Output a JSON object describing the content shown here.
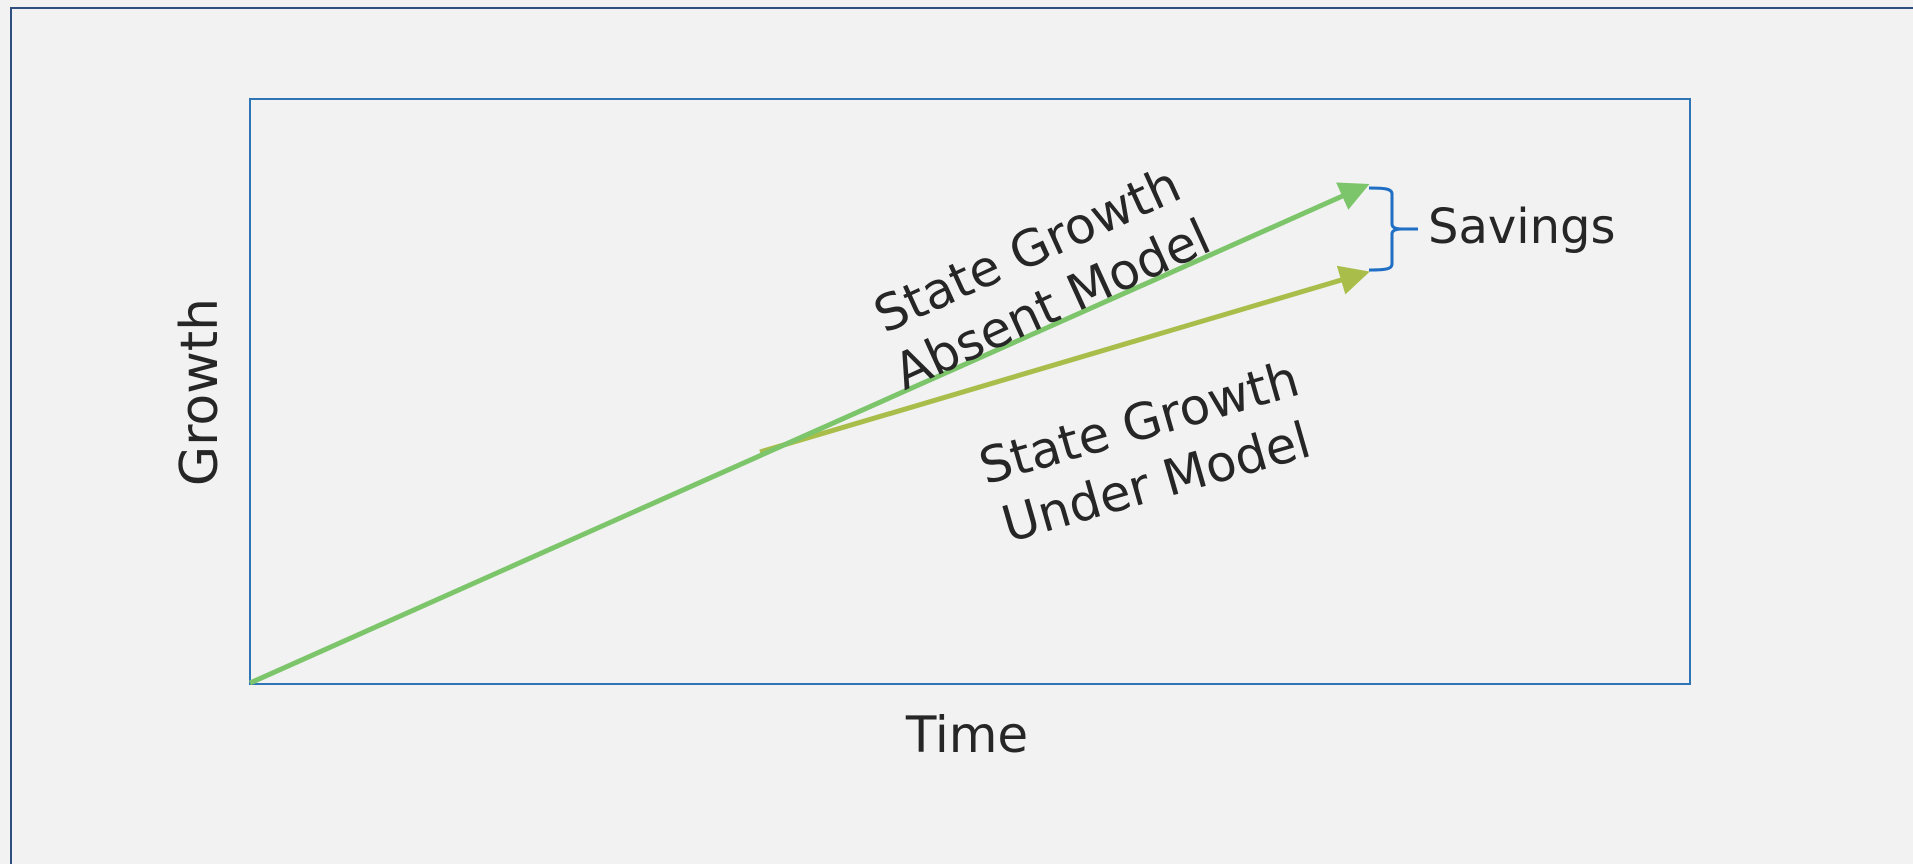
{
  "diagram": {
    "y_axis_label": "Growth",
    "x_axis_label": "Time",
    "upper_arrow": {
      "label_line1": "State Growth",
      "label_line2": "Absent Model"
    },
    "lower_arrow": {
      "label_line1": "State Growth",
      "label_line2": "Under Model"
    },
    "bracket_label": "Savings"
  },
  "colors": {
    "background": "#f2f2f2",
    "plot_border": "#2e75b6",
    "upper_arrow": "#7cc56a",
    "lower_arrow": "#a9bd4a",
    "bracket": "#1f6fc4",
    "text": "#262626"
  }
}
